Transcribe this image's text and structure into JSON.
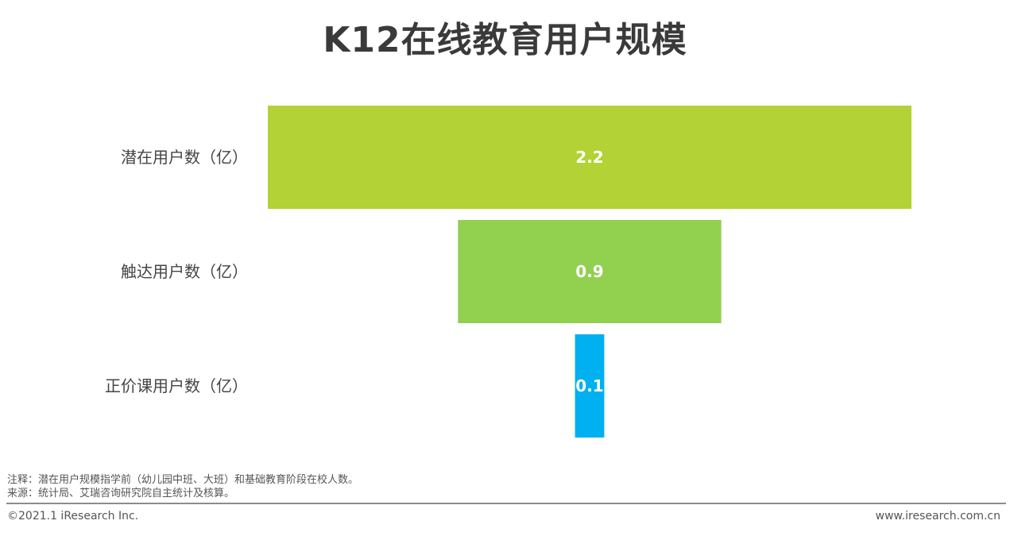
{
  "title": "K12在线教育用户规模",
  "chart_data": {
    "type": "bar",
    "orientation": "horizontal-centered-funnel",
    "categories": [
      "潜在用户数（亿）",
      "触达用户数（亿）",
      "正价课用户数（亿）"
    ],
    "values": [
      2.2,
      0.9,
      0.1
    ],
    "value_labels": [
      "2.2",
      "0.9",
      "0.1"
    ],
    "colors": [
      "#b2d235",
      "#92d050",
      "#00b0f0"
    ],
    "xlim": [
      0,
      2.2
    ],
    "grid": false,
    "legend": "none"
  },
  "notes": {
    "line1": "注释：潜在用户规模指学前（幼儿园中班、大班）和基础教育阶段在校人数。",
    "line2": "来源：统计局、艾瑞咨询研究院自主统计及核算。"
  },
  "footer": {
    "copyright": "©2021.1 iResearch Inc.",
    "website": "www.iresearch.com.cn"
  }
}
